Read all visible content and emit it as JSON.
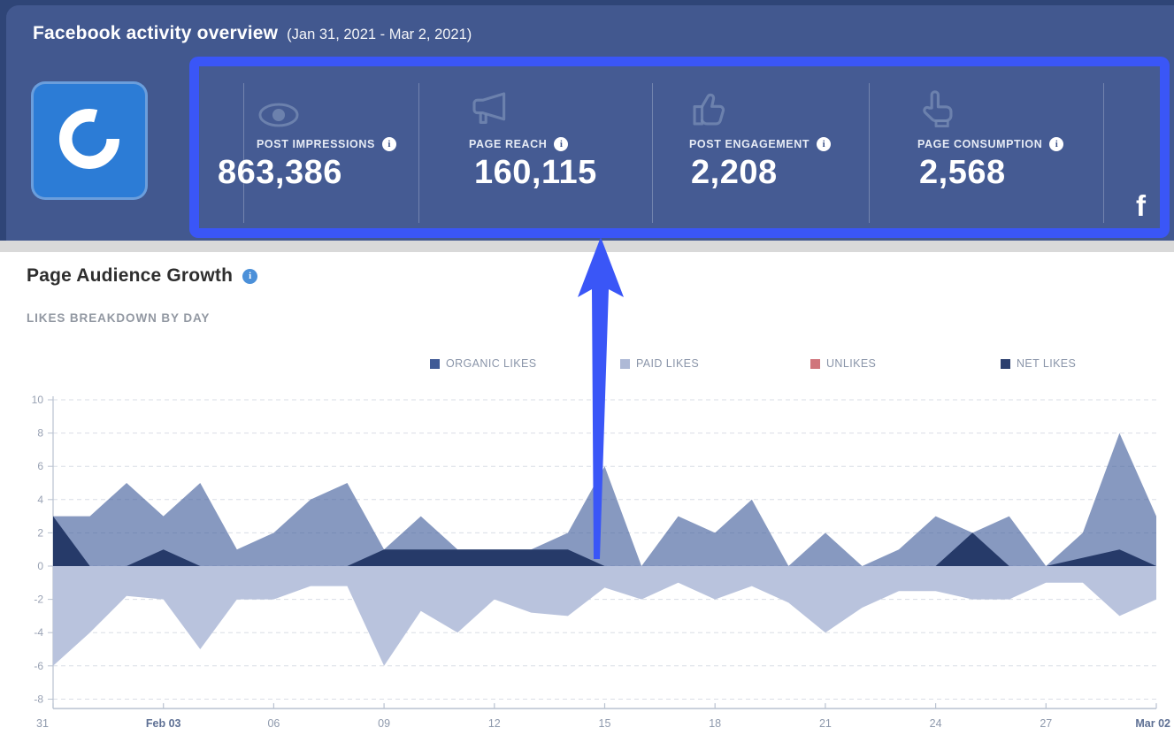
{
  "header": {
    "title": "Facebook activity overview",
    "date_range": "(Jan 31, 2021 - Mar 2, 2021)",
    "brand_logo": "open-ring-logo",
    "facebook_glyph": "f",
    "info_glyph": "i",
    "metrics": [
      {
        "label": "POST IMPRESSIONS",
        "value": "863,386",
        "icon": "eye-icon"
      },
      {
        "label": "PAGE REACH",
        "value": "160,115",
        "icon": "megaphone-icon"
      },
      {
        "label": "POST ENGAGEMENT",
        "value": "2,208",
        "icon": "thumbs-up-icon"
      },
      {
        "label": "PAGE CONSUMPTION",
        "value": "2,568",
        "icon": "pointer-hand-icon"
      }
    ]
  },
  "section": {
    "title": "Page Audience Growth",
    "subtitle": "LIKES BREAKDOWN BY DAY"
  },
  "colors": {
    "accent_blue": "#3a56f7",
    "header_outer": "#2f4577",
    "header_bg": "#42588f",
    "panel_bg": "#455b93",
    "brand_tile": "#2c7cd6",
    "gray_strip": "#d9d9d9",
    "grid_line": "#d9dde6",
    "axis_line": "#b9c2d0",
    "tick_label": "#98a1b3",
    "x_label": "#8e99ac",
    "x_label_bold": "#5e7094"
  },
  "chart_data": {
    "type": "area",
    "title": "Page Audience Growth",
    "subtitle": "LIKES BREAKDOWN BY DAY",
    "grid": "dashed",
    "legend_position": "top",
    "ylim": [
      -8,
      10
    ],
    "y_ticks": [
      10,
      8,
      6,
      4,
      2,
      0,
      -2,
      -4,
      -6,
      -8
    ],
    "x_ticks": [
      {
        "day": 0,
        "label": "31",
        "bold": false
      },
      {
        "day": 3,
        "label": "Feb 03",
        "bold": true
      },
      {
        "day": 6,
        "label": "06",
        "bold": false
      },
      {
        "day": 9,
        "label": "09",
        "bold": false
      },
      {
        "day": 12,
        "label": "12",
        "bold": false
      },
      {
        "day": 15,
        "label": "15",
        "bold": false
      },
      {
        "day": 18,
        "label": "18",
        "bold": false
      },
      {
        "day": 21,
        "label": "21",
        "bold": false
      },
      {
        "day": 24,
        "label": "24",
        "bold": false
      },
      {
        "day": 27,
        "label": "27",
        "bold": false
      },
      {
        "day": 30,
        "label": "Mar 02",
        "bold": true
      }
    ],
    "dates": [
      "Jan 31",
      "Feb 01",
      "Feb 02",
      "Feb 03",
      "Feb 04",
      "Feb 05",
      "Feb 06",
      "Feb 07",
      "Feb 08",
      "Feb 09",
      "Feb 10",
      "Feb 11",
      "Feb 12",
      "Feb 13",
      "Feb 14",
      "Feb 15",
      "Feb 16",
      "Feb 17",
      "Feb 18",
      "Feb 19",
      "Feb 20",
      "Feb 21",
      "Feb 22",
      "Feb 23",
      "Feb 24",
      "Feb 25",
      "Feb 26",
      "Feb 27",
      "Feb 28",
      "Mar 01",
      "Mar 02"
    ],
    "paint_order": [
      1,
      2,
      0,
      3
    ],
    "series": [
      {
        "name": "ORGANIC LIKES",
        "legend_color": "#3f5a96",
        "area_color": "rgba(62,90,153,0.62)",
        "values": [
          3,
          3,
          5,
          3,
          5,
          1,
          2,
          4,
          5,
          1,
          3,
          1,
          1,
          1,
          2,
          6,
          0,
          3,
          2,
          4,
          0,
          2,
          0,
          1,
          3,
          2,
          3,
          0,
          2,
          8,
          3
        ]
      },
      {
        "name": "PAID LIKES",
        "legend_color": "#aeb9d6",
        "area_color": "rgba(174,185,214,0.95)",
        "values": [
          0,
          0,
          0,
          0,
          0,
          0,
          0,
          0,
          0,
          0,
          0,
          0,
          0,
          0,
          0,
          0,
          0,
          0,
          0,
          0,
          0,
          0,
          0,
          0,
          0,
          0,
          0,
          0,
          0,
          0,
          0
        ]
      },
      {
        "name": "UNLIKES",
        "legend_color": "#d0757c",
        "area_color": "#b9c3dd",
        "values": [
          -6,
          -4,
          -1.8,
          -2,
          -5,
          -2,
          -2,
          -1.2,
          -1.2,
          -6,
          -2.7,
          -4,
          -2,
          -2.8,
          -3,
          -1.3,
          -2,
          -1,
          -2,
          -1.2,
          -2.2,
          -4,
          -2.5,
          -1.5,
          -1.5,
          -2,
          -2,
          -1,
          -1,
          -3,
          -2
        ]
      },
      {
        "name": "NET LIKES",
        "legend_color": "#2b3f6e",
        "area_color": "rgba(33,53,100,0.95)",
        "values": [
          3,
          0,
          0,
          1,
          0,
          0,
          0,
          0,
          0,
          1,
          1,
          1,
          1,
          1,
          1,
          0,
          0,
          0,
          0,
          0,
          0,
          0,
          0,
          0,
          0,
          2,
          0,
          0,
          0.5,
          1,
          0
        ]
      }
    ]
  }
}
